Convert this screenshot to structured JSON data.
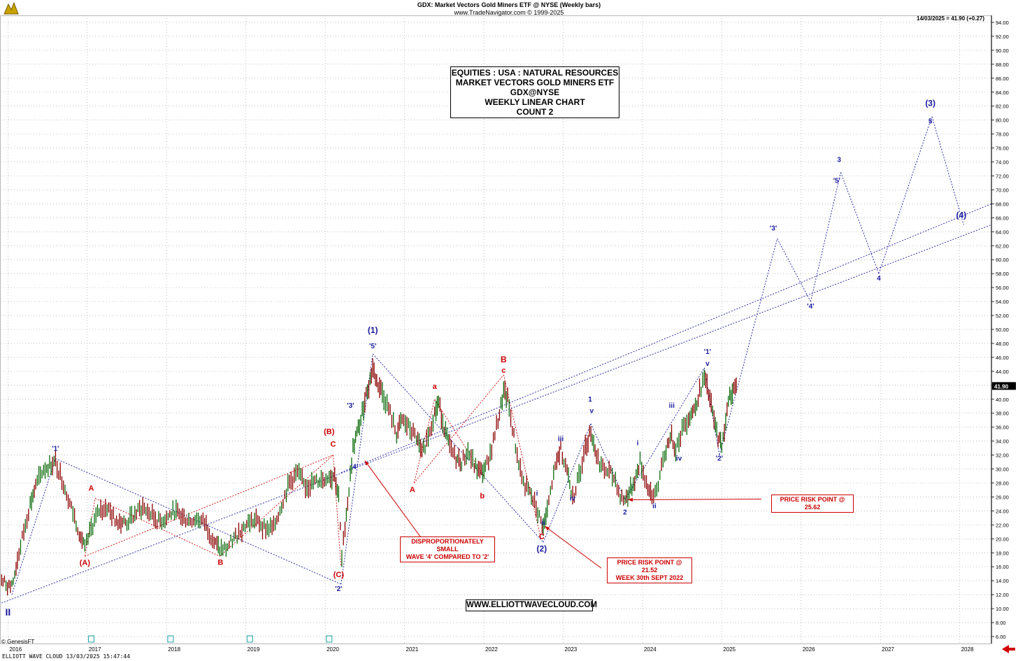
{
  "header": {
    "line1": "GDX:  Market Vectors Gold Miners ETF @ NYSE  (Weekly bars)",
    "line2": "www.TradeNavigator.com © 1999-2025",
    "last_quote": "14/03/2025 = 41.90 (+0.27)"
  },
  "title_box": {
    "line1": "EQUITIES : USA : NATURAL RESOURCES",
    "line2": "MARKET VECTORS GOLD MINERS ETF",
    "line3": "GDX@NYSE",
    "line4": "WEEKLY LINEAR CHART",
    "line5": "COUNT 2"
  },
  "website_box": "WWW.ELLIOTTWAVECLOUD.COM",
  "notes": {
    "small_wave4": [
      "DISPROPORTIONATELY SMALL",
      "WAVE '4' COMPARED TO '2'"
    ],
    "risk_2152": [
      "PRICE RISK POINT @ 21.52",
      "WEEK 30th SEPT 2022"
    ],
    "risk_2562": "PRICE RISK POINT @ 25.62"
  },
  "footer": "ELLIOTT WAVE CLOUD   13/03/2025 15:47:44",
  "copyright": "© GenesisFT",
  "colors": {
    "red": "#cc0000",
    "blue": "#1a1a9e",
    "bull": "#0a6a0a",
    "bear": "#8b0000",
    "price_tag": "#000000"
  },
  "chart_data": {
    "type": "line",
    "x_ticks": [
      "2016",
      "2017",
      "2018",
      "2019",
      "2020",
      "2021",
      "2022",
      "2023",
      "2024",
      "2025",
      "2026",
      "2027",
      "2028"
    ],
    "y_ticks": [
      6,
      8,
      10,
      12,
      14,
      16,
      18,
      20,
      22,
      24,
      26,
      28,
      30,
      32,
      34,
      36,
      38,
      40,
      42,
      44,
      46,
      48,
      50,
      52,
      54,
      56,
      58,
      60,
      62,
      64,
      66,
      68,
      70,
      72,
      74,
      76,
      78,
      80,
      82,
      84,
      86,
      88,
      90,
      92,
      94
    ],
    "ylim": [
      5,
      95
    ],
    "xlim": [
      2015.9,
      2028.4
    ],
    "grid": true,
    "last_price": 41.9,
    "last_price_label": "41.90",
    "price_path": [
      [
        2015.92,
        14.0
      ],
      [
        2016.05,
        13.0
      ],
      [
        2016.12,
        17.0
      ],
      [
        2016.2,
        21.0
      ],
      [
        2016.28,
        25.0
      ],
      [
        2016.35,
        27.5
      ],
      [
        2016.45,
        30.0
      ],
      [
        2016.6,
        31.0
      ],
      [
        2016.7,
        28.0
      ],
      [
        2016.8,
        24.5
      ],
      [
        2016.9,
        21.0
      ],
      [
        2016.97,
        18.5
      ],
      [
        2017.05,
        21.5
      ],
      [
        2017.15,
        24.0
      ],
      [
        2017.25,
        24.5
      ],
      [
        2017.35,
        22.8
      ],
      [
        2017.5,
        22.3
      ],
      [
        2017.6,
        23.5
      ],
      [
        2017.7,
        24.5
      ],
      [
        2017.8,
        23.5
      ],
      [
        2017.9,
        22.5
      ],
      [
        2018.0,
        23.0
      ],
      [
        2018.1,
        24.0
      ],
      [
        2018.2,
        23.0
      ],
      [
        2018.3,
        22.7
      ],
      [
        2018.4,
        22.9
      ],
      [
        2018.5,
        22.0
      ],
      [
        2018.6,
        19.5
      ],
      [
        2018.67,
        18.5
      ],
      [
        2018.75,
        18.6
      ],
      [
        2018.85,
        20.0
      ],
      [
        2018.95,
        21.5
      ],
      [
        2019.05,
        22.5
      ],
      [
        2019.15,
        22.5
      ],
      [
        2019.25,
        21.5
      ],
      [
        2019.35,
        21.5
      ],
      [
        2019.45,
        25.0
      ],
      [
        2019.55,
        28.0
      ],
      [
        2019.65,
        29.5
      ],
      [
        2019.75,
        27.5
      ],
      [
        2019.85,
        28.0
      ],
      [
        2019.95,
        28.5
      ],
      [
        2020.05,
        29.0
      ],
      [
        2020.12,
        29.0
      ],
      [
        2020.17,
        26.0
      ],
      [
        2020.21,
        17.0
      ],
      [
        2020.25,
        22.0
      ],
      [
        2020.3,
        27.0
      ],
      [
        2020.35,
        33.0
      ],
      [
        2020.4,
        35.0
      ],
      [
        2020.45,
        37.0
      ],
      [
        2020.5,
        40.0
      ],
      [
        2020.55,
        42.0
      ],
      [
        2020.6,
        44.5
      ],
      [
        2020.65,
        42.5
      ],
      [
        2020.72,
        41.0
      ],
      [
        2020.82,
        38.0
      ],
      [
        2020.9,
        35.0
      ],
      [
        2020.97,
        37.0
      ],
      [
        2021.05,
        36.0
      ],
      [
        2021.15,
        34.5
      ],
      [
        2021.22,
        32.0
      ],
      [
        2021.3,
        35.0
      ],
      [
        2021.38,
        38.0
      ],
      [
        2021.43,
        39.5
      ],
      [
        2021.5,
        36.0
      ],
      [
        2021.57,
        33.0
      ],
      [
        2021.65,
        31.5
      ],
      [
        2021.72,
        31.0
      ],
      [
        2021.8,
        32.5
      ],
      [
        2021.88,
        30.5
      ],
      [
        2021.95,
        29.5
      ],
      [
        2022.02,
        30.0
      ],
      [
        2022.1,
        33.0
      ],
      [
        2022.18,
        37.0
      ],
      [
        2022.25,
        41.0
      ],
      [
        2022.3,
        40.0
      ],
      [
        2022.36,
        36.0
      ],
      [
        2022.42,
        32.0
      ],
      [
        2022.5,
        28.0
      ],
      [
        2022.58,
        26.5
      ],
      [
        2022.66,
        24.5
      ],
      [
        2022.72,
        22.5
      ],
      [
        2022.75,
        21.5
      ],
      [
        2022.8,
        24.0
      ],
      [
        2022.86,
        28.0
      ],
      [
        2022.92,
        31.0
      ],
      [
        2022.97,
        33.0
      ],
      [
        2023.05,
        30.0
      ],
      [
        2023.1,
        27.0
      ],
      [
        2023.14,
        26.5
      ],
      [
        2023.2,
        29.0
      ],
      [
        2023.28,
        33.0
      ],
      [
        2023.35,
        35.5
      ],
      [
        2023.42,
        32.0
      ],
      [
        2023.5,
        30.0
      ],
      [
        2023.58,
        29.5
      ],
      [
        2023.66,
        28.5
      ],
      [
        2023.72,
        26.0
      ],
      [
        2023.78,
        25.6
      ],
      [
        2023.85,
        27.0
      ],
      [
        2023.92,
        29.0
      ],
      [
        2023.97,
        31.0
      ],
      [
        2024.05,
        28.0
      ],
      [
        2024.12,
        25.6
      ],
      [
        2024.2,
        28.0
      ],
      [
        2024.28,
        32.0
      ],
      [
        2024.35,
        35.0
      ],
      [
        2024.42,
        33.0
      ],
      [
        2024.5,
        35.5
      ],
      [
        2024.58,
        37.5
      ],
      [
        2024.65,
        38.5
      ],
      [
        2024.72,
        41.0
      ],
      [
        2024.78,
        43.0
      ],
      [
        2024.85,
        40.0
      ],
      [
        2024.92,
        36.0
      ],
      [
        2024.97,
        34.0
      ],
      [
        2025.0,
        33.5
      ],
      [
        2025.05,
        37.0
      ],
      [
        2025.1,
        40.5
      ],
      [
        2025.15,
        41.5
      ],
      [
        2025.2,
        41.9
      ]
    ],
    "blue_lines": [
      [
        [
          2015.92,
          10.8
        ],
        [
          2028.4,
          65.0
        ]
      ],
      [
        [
          2020.2,
          29.5
        ],
        [
          2028.4,
          68.0
        ]
      ],
      [
        [
          2016.6,
          31.5
        ],
        [
          2020.2,
          13.5
        ]
      ],
      [
        [
          2020.6,
          46.5
        ],
        [
          2022.75,
          19.5
        ]
      ],
      [
        [
          2016.05,
          12.0
        ],
        [
          2016.6,
          31.5
        ]
      ],
      [
        [
          2020.2,
          13.5
        ],
        [
          2020.6,
          46.5
        ]
      ],
      [
        [
          2022.75,
          19.5
        ],
        [
          2023.35,
          36.5
        ]
      ],
      [
        [
          2023.35,
          36.5
        ],
        [
          2023.78,
          25.6
        ]
      ],
      [
        [
          2023.78,
          25.6
        ],
        [
          2024.78,
          44.5
        ]
      ],
      [
        [
          2024.78,
          44.5
        ],
        [
          2024.97,
          32.0
        ]
      ],
      [
        [
          2024.97,
          32.0
        ],
        [
          2025.7,
          63.0
        ]
      ],
      [
        [
          2025.7,
          63.0
        ],
        [
          2026.12,
          54.0
        ]
      ],
      [
        [
          2026.12,
          54.0
        ],
        [
          2026.5,
          72.5
        ]
      ],
      [
        [
          2026.5,
          72.5
        ],
        [
          2026.98,
          58.0
        ]
      ],
      [
        [
          2026.98,
          58.0
        ],
        [
          2027.65,
          80.5
        ]
      ],
      [
        [
          2027.65,
          80.5
        ],
        [
          2028.05,
          65.0
        ]
      ]
    ],
    "red_lines": [
      [
        [
          2016.97,
          17.5
        ],
        [
          2020.1,
          32.0
        ]
      ],
      [
        [
          2016.97,
          17.5
        ],
        [
          2017.1,
          25.8
        ]
      ],
      [
        [
          2017.1,
          25.8
        ],
        [
          2018.67,
          17.5
        ]
      ],
      [
        [
          2018.67,
          17.5
        ],
        [
          2020.1,
          32.0
        ]
      ],
      [
        [
          2020.1,
          32.0
        ],
        [
          2020.2,
          16.0
        ]
      ],
      [
        [
          2021.12,
          28.0
        ],
        [
          2021.38,
          40.0
        ]
      ],
      [
        [
          2021.38,
          40.0
        ],
        [
          2022.0,
          29.0
        ]
      ],
      [
        [
          2021.12,
          28.0
        ],
        [
          2022.25,
          43.5
        ]
      ],
      [
        [
          2022.25,
          43.5
        ],
        [
          2022.72,
          20.0
        ]
      ]
    ],
    "labels": [
      {
        "t": "'1'",
        "x": 2016.6,
        "y": 32.6,
        "c": "blue",
        "s": 10
      },
      {
        "t": "II",
        "x": 2016.0,
        "y": 9.0,
        "c": "blue",
        "s": 14
      },
      {
        "t": "A",
        "x": 2017.05,
        "y": 26.9,
        "c": "red",
        "s": 11
      },
      {
        "t": "(A)",
        "x": 2016.97,
        "y": 16.2,
        "c": "red",
        "s": 11
      },
      {
        "t": "B",
        "x": 2018.68,
        "y": 16.3,
        "c": "red",
        "s": 11
      },
      {
        "t": "(B)",
        "x": 2020.05,
        "y": 35.0,
        "c": "red",
        "s": 11
      },
      {
        "t": "C",
        "x": 2020.1,
        "y": 33.2,
        "c": "red",
        "s": 11
      },
      {
        "t": "(C)",
        "x": 2020.17,
        "y": 14.5,
        "c": "red",
        "s": 11
      },
      {
        "t": "'2'",
        "x": 2020.17,
        "y": 12.5,
        "c": "blue",
        "s": 10
      },
      {
        "t": "'3'",
        "x": 2020.32,
        "y": 38.8,
        "c": "blue",
        "s": 10
      },
      {
        "t": "'4'",
        "x": 2020.37,
        "y": 30.0,
        "c": "blue",
        "s": 10
      },
      {
        "t": "(1)",
        "x": 2020.6,
        "y": 49.5,
        "c": "blue",
        "s": 12
      },
      {
        "t": "'5'",
        "x": 2020.6,
        "y": 47.3,
        "c": "blue",
        "s": 10
      },
      {
        "t": "a",
        "x": 2021.38,
        "y": 41.5,
        "c": "red",
        "s": 11
      },
      {
        "t": "A",
        "x": 2021.1,
        "y": 26.7,
        "c": "red",
        "s": 11
      },
      {
        "t": "b",
        "x": 2021.98,
        "y": 25.8,
        "c": "red",
        "s": 11
      },
      {
        "t": "B",
        "x": 2022.25,
        "y": 45.3,
        "c": "red",
        "s": 12
      },
      {
        "t": "c",
        "x": 2022.25,
        "y": 43.8,
        "c": "red",
        "s": 11
      },
      {
        "t": "i",
        "x": 2022.67,
        "y": 26.2,
        "c": "blue",
        "s": 10
      },
      {
        "t": "ii",
        "x": 2022.75,
        "y": 22.0,
        "c": "blue",
        "s": 10
      },
      {
        "t": "C",
        "x": 2022.73,
        "y": 20.0,
        "c": "red",
        "s": 11
      },
      {
        "t": "(2)",
        "x": 2022.73,
        "y": 18.2,
        "c": "blue",
        "s": 12
      },
      {
        "t": "iii",
        "x": 2022.97,
        "y": 34.0,
        "c": "blue",
        "s": 10
      },
      {
        "t": "iv",
        "x": 2023.12,
        "y": 25.5,
        "c": "blue",
        "s": 10
      },
      {
        "t": "1",
        "x": 2023.34,
        "y": 39.7,
        "c": "blue",
        "s": 10
      },
      {
        "t": "v",
        "x": 2023.36,
        "y": 38.0,
        "c": "blue",
        "s": 10
      },
      {
        "t": "2",
        "x": 2023.78,
        "y": 23.5,
        "c": "blue",
        "s": 10
      },
      {
        "t": "i",
        "x": 2023.94,
        "y": 33.4,
        "c": "blue",
        "s": 10
      },
      {
        "t": "ii",
        "x": 2024.15,
        "y": 24.4,
        "c": "blue",
        "s": 10
      },
      {
        "t": "iii",
        "x": 2024.37,
        "y": 38.8,
        "c": "blue",
        "s": 10
      },
      {
        "t": "iv",
        "x": 2024.46,
        "y": 31.2,
        "c": "blue",
        "s": 10
      },
      {
        "t": "'1'",
        "x": 2024.82,
        "y": 46.5,
        "c": "blue",
        "s": 10
      },
      {
        "t": "v",
        "x": 2024.82,
        "y": 44.8,
        "c": "blue",
        "s": 10
      },
      {
        "t": "'2'",
        "x": 2024.97,
        "y": 31.2,
        "c": "blue",
        "s": 10
      },
      {
        "t": "'3'",
        "x": 2025.65,
        "y": 64.2,
        "c": "blue",
        "s": 10
      },
      {
        "t": "'4'",
        "x": 2026.12,
        "y": 53.0,
        "c": "blue",
        "s": 10
      },
      {
        "t": "3",
        "x": 2026.48,
        "y": 74.0,
        "c": "blue",
        "s": 10
      },
      {
        "t": "'5'",
        "x": 2026.45,
        "y": 71.0,
        "c": "blue",
        "s": 10
      },
      {
        "t": "4",
        "x": 2026.98,
        "y": 57.0,
        "c": "blue",
        "s": 10
      },
      {
        "t": "(3)",
        "x": 2027.63,
        "y": 82.0,
        "c": "blue",
        "s": 12
      },
      {
        "t": "5",
        "x": 2027.63,
        "y": 79.5,
        "c": "blue",
        "s": 10
      },
      {
        "t": "(4)",
        "x": 2028.02,
        "y": 66.0,
        "c": "blue",
        "s": 12
      }
    ],
    "arrows": [
      {
        "from": [
          2021.2,
          20.3
        ],
        "to": [
          2020.5,
          31.2
        ]
      },
      {
        "from": [
          2023.48,
          15.8
        ],
        "to": [
          2022.77,
          21.8
        ]
      },
      {
        "from": [
          2025.5,
          25.7
        ],
        "to": [
          2023.82,
          25.6
        ]
      }
    ]
  }
}
